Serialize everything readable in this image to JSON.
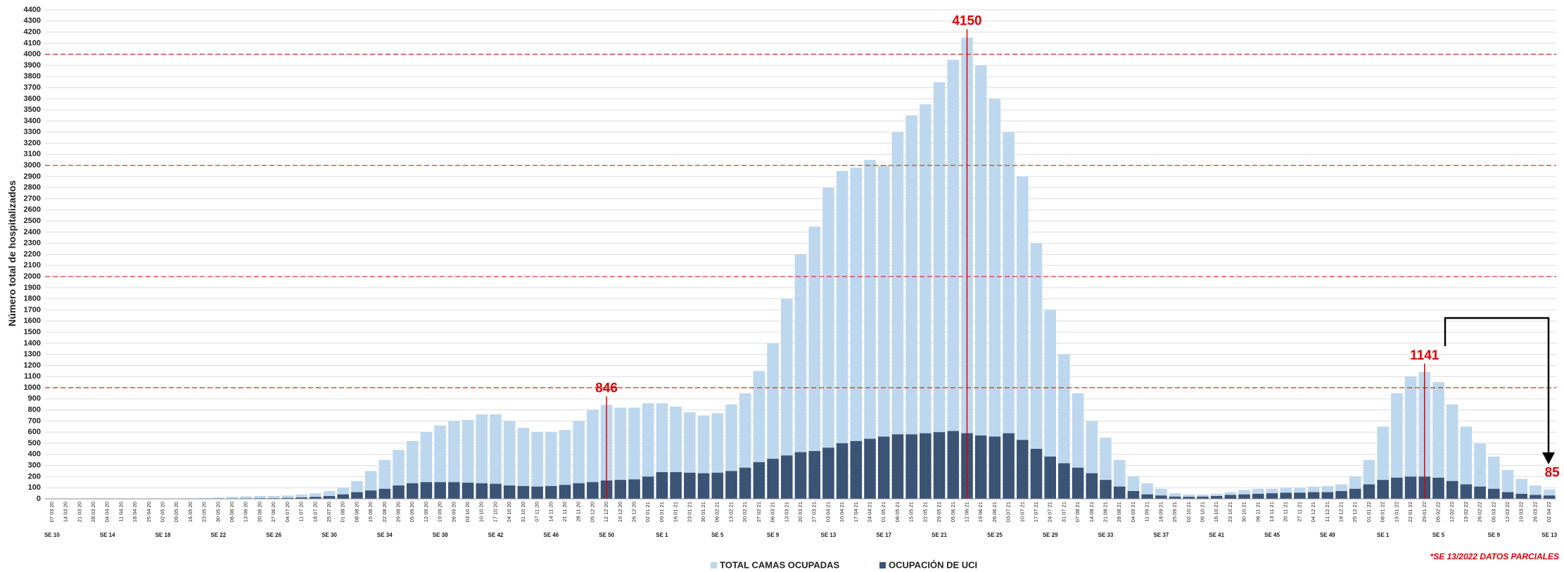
{
  "chart_data": {
    "type": "bar",
    "y_label": "Número total de hospitalizados",
    "footnote": "*SE 13/2022 DATOS PARCIALES",
    "categories": [
      "07 03 20",
      "14 03 20",
      "21 03 20",
      "28 03 20",
      "04 04 20",
      "11 04 20",
      "18 04 20",
      "25 04 20",
      "02 05 20",
      "09 05 20",
      "16 05 20",
      "23 05 20",
      "30 05 20",
      "06 06 20",
      "13 06 20",
      "20 06 20",
      "27 06 20",
      "04 07 20",
      "11 07 20",
      "18 07 20",
      "25 07 20",
      "01 08 20",
      "08 08 20",
      "15 08 20",
      "22 08 20",
      "29 08 20",
      "05 09 20",
      "12 09 20",
      "19 09 20",
      "26 09 20",
      "03 10 20",
      "10 10 20",
      "17 10 20",
      "24 10 20",
      "31 10 20",
      "07 11 20",
      "14 11 20",
      "21 11 20",
      "28 11 20",
      "05 12 20",
      "12 12 20",
      "19 12 20",
      "26 12 20",
      "02 01 21",
      "09 01 21",
      "16 01 21",
      "23 01 21",
      "30 01 21",
      "06 02 21",
      "13 02 21",
      "20 02 21",
      "27 02 21",
      "06 03 21",
      "13 03 21",
      "20 03 21",
      "27 03 21",
      "03 04 21",
      "10 04 21",
      "17 04 21",
      "24 04 21",
      "01 05 21",
      "08 05 21",
      "15 05 21",
      "22 05 21",
      "29 05 21",
      "05 06 21",
      "12 06 21",
      "19 06 21",
      "26 06 21",
      "03 07 21",
      "10 07 21",
      "17 07 21",
      "24 07 21",
      "31 07 21",
      "07 08 21",
      "14 08 21",
      "21 08 21",
      "28 08 21",
      "04 09 21",
      "11 09 21",
      "18 09 21",
      "25 09 21",
      "02 10 21",
      "09 10 21",
      "16 10 21",
      "23 10 21",
      "30 10 21",
      "06 11 21",
      "13 11 21",
      "20 11 21",
      "27 11 21",
      "04 12 21",
      "11 12 21",
      "18 12 21",
      "25 12 21",
      "01 01 22",
      "08 01 22",
      "15 01 22",
      "22 01 22",
      "29 01 22",
      "05 02 22",
      "12 02 22",
      "19 02 22",
      "26 02 22",
      "05 03 22",
      "12 03 22",
      "19 03 22",
      "26 03 22",
      "02 04 22"
    ],
    "epi_weeks": [
      "SE 10",
      null,
      null,
      null,
      "SE 14",
      null,
      null,
      null,
      "SE 18",
      null,
      null,
      null,
      "SE 22",
      null,
      null,
      null,
      "SE 26",
      null,
      null,
      null,
      "SE 30",
      null,
      null,
      null,
      "SE 34",
      null,
      null,
      null,
      "SE 38",
      null,
      null,
      null,
      "SE 42",
      null,
      null,
      null,
      "SE 46",
      null,
      null,
      null,
      "SE 50",
      null,
      null,
      null,
      "SE 1",
      null,
      null,
      null,
      "SE 5",
      null,
      null,
      null,
      "SE 9",
      null,
      null,
      null,
      "SE 13",
      null,
      null,
      null,
      "SE 17",
      null,
      null,
      null,
      "SE 21",
      null,
      null,
      null,
      "SE 25",
      null,
      null,
      null,
      "SE 29",
      null,
      null,
      null,
      "SE 33",
      null,
      null,
      null,
      "SE 37",
      null,
      null,
      null,
      "SE 41",
      null,
      null,
      null,
      "SE 45",
      null,
      null,
      null,
      "SE 49",
      null,
      null,
      null,
      "SE 1",
      null,
      null,
      null,
      "SE 5",
      null,
      null,
      null,
      "SE 9",
      null,
      null,
      null,
      "SE 13"
    ],
    "series": [
      {
        "name": "TOTAL CAMAS OCUPADAS",
        "color": "#bdd7ee",
        "values": [
          2,
          3,
          3,
          4,
          4,
          3,
          3,
          2,
          2,
          3,
          5,
          8,
          12,
          18,
          22,
          25,
          25,
          30,
          40,
          50,
          70,
          100,
          160,
          250,
          350,
          440,
          520,
          600,
          660,
          700,
          710,
          760,
          760,
          700,
          640,
          600,
          600,
          620,
          700,
          800,
          846,
          820,
          820,
          860,
          860,
          830,
          780,
          750,
          770,
          850,
          950,
          1150,
          1400,
          1800,
          2200,
          2450,
          2800,
          2950,
          2980,
          3050,
          3000,
          3300,
          3450,
          3550,
          3750,
          3950,
          4150,
          3900,
          3600,
          3300,
          2900,
          2300,
          1700,
          1300,
          950,
          700,
          550,
          350,
          200,
          140,
          90,
          50,
          40,
          40,
          45,
          60,
          80,
          90,
          90,
          100,
          100,
          110,
          115,
          130,
          200,
          350,
          650,
          950,
          1100,
          1141,
          1050,
          850,
          650,
          500,
          380,
          260,
          180,
          120,
          85
        ]
      },
      {
        "name": "OCUPACIÓN DE UCI",
        "color": "#3b5375",
        "values": [
          0,
          0,
          1,
          1,
          1,
          1,
          1,
          1,
          1,
          1,
          1,
          2,
          2,
          3,
          4,
          5,
          5,
          8,
          12,
          18,
          25,
          40,
          60,
          75,
          90,
          120,
          140,
          150,
          150,
          150,
          145,
          140,
          135,
          120,
          115,
          110,
          115,
          125,
          140,
          150,
          165,
          170,
          175,
          200,
          240,
          240,
          235,
          230,
          235,
          250,
          280,
          330,
          360,
          390,
          420,
          430,
          460,
          500,
          520,
          540,
          560,
          580,
          580,
          590,
          600,
          610,
          590,
          570,
          560,
          590,
          530,
          450,
          380,
          320,
          280,
          230,
          170,
          110,
          70,
          40,
          30,
          20,
          18,
          20,
          25,
          35,
          40,
          45,
          50,
          55,
          55,
          60,
          60,
          70,
          90,
          130,
          170,
          190,
          200,
          200,
          190,
          160,
          130,
          110,
          90,
          60,
          45,
          35,
          30
        ]
      }
    ],
    "labeled_points": [
      40,
      66,
      99,
      108
    ],
    "marker_lines": [
      40,
      66,
      99
    ],
    "reference_lines": [
      1000,
      2000,
      3000,
      4000
    ],
    "ylim": [
      0,
      4400
    ],
    "yticks": [
      0,
      100,
      200,
      300,
      400,
      500,
      600,
      700,
      800,
      900,
      1000,
      1100,
      1200,
      1300,
      1400,
      1500,
      1600,
      1700,
      1800,
      1900,
      2000,
      2100,
      2200,
      2300,
      2400,
      2500,
      2600,
      2700,
      2800,
      2900,
      3000,
      3100,
      3200,
      3300,
      3400,
      3500,
      3600,
      3700,
      3800,
      3900,
      4000,
      4100,
      4200,
      4300,
      4400
    ],
    "grid": true,
    "legend": "bottom"
  }
}
